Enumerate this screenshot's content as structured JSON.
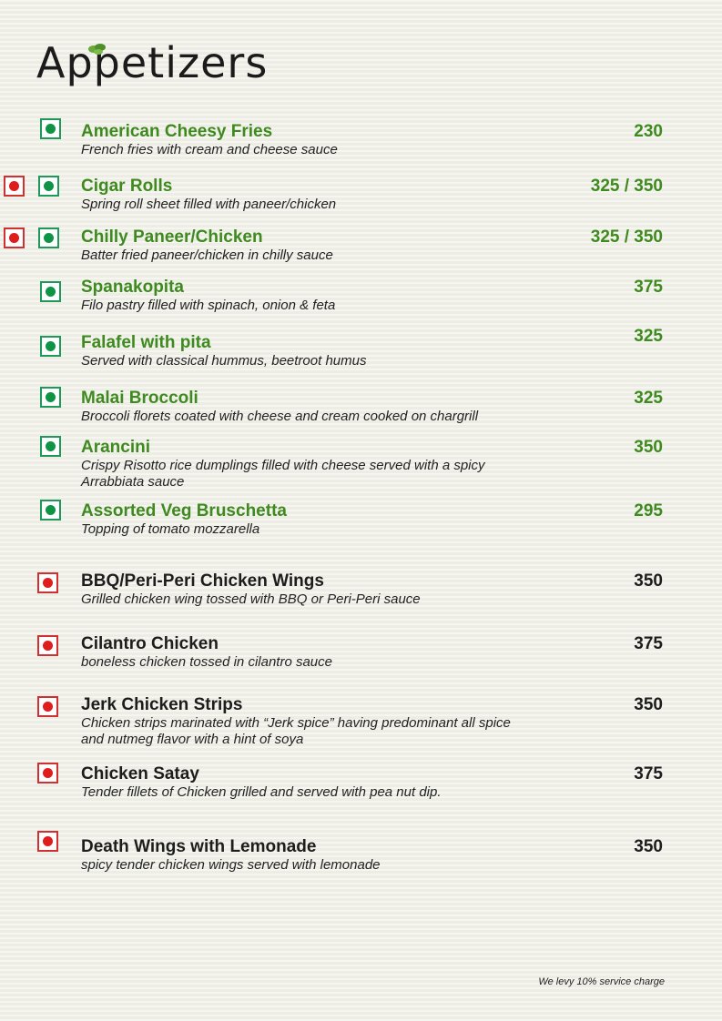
{
  "page_title": "Appetizers",
  "colors": {
    "veg_name": "#3f8a1f",
    "veg_mark": "#0f9446",
    "nonveg_mark": "#e01d1d"
  },
  "items": [
    {
      "name": "American Cheesy Fries",
      "desc": "French fries with cream and cheese sauce",
      "price": "230",
      "type": "veg",
      "marks": [
        "veg"
      ]
    },
    {
      "name": "Cigar Rolls",
      "desc": "Spring roll sheet filled with paneer/chicken",
      "price": "325 / 350",
      "type": "veg",
      "marks": [
        "nonveg",
        "veg"
      ]
    },
    {
      "name": "Chilly Paneer/Chicken",
      "desc": "Batter fried paneer/chicken in chilly sauce",
      "price": "325 / 350",
      "type": "veg",
      "marks": [
        "nonveg",
        "veg"
      ]
    },
    {
      "name": "Spanakopita",
      "desc": "Filo pastry filled with spinach, onion & feta",
      "price": "375",
      "type": "veg",
      "marks": [
        "veg"
      ]
    },
    {
      "name": "Falafel with pita",
      "desc": "Served with classical hummus, beetroot humus",
      "price": "325",
      "type": "veg",
      "marks": [
        "veg"
      ]
    },
    {
      "name": "Malai Broccoli",
      "desc": "Broccoli florets coated with cheese and cream cooked on chargrill",
      "price": "325",
      "type": "veg",
      "marks": [
        "veg"
      ]
    },
    {
      "name": "Arancini",
      "desc": "Crispy Risotto rice dumplings filled with cheese served with a spicy Arrabbiata sauce",
      "price": "350",
      "type": "veg",
      "marks": [
        "veg"
      ]
    },
    {
      "name": "Assorted Veg Bruschetta",
      "desc": "Topping of tomato mozzarella",
      "price": "295",
      "type": "veg",
      "marks": [
        "veg"
      ]
    },
    {
      "name": "BBQ/Peri-Peri Chicken Wings",
      "desc": "Grilled chicken wing tossed with BBQ or Peri-Peri sauce",
      "price": "350",
      "type": "nonveg",
      "marks": [
        "nonveg"
      ]
    },
    {
      "name": "Cilantro Chicken",
      "desc": "boneless chicken tossed in cilantro sauce",
      "price": "375",
      "type": "nonveg",
      "marks": [
        "nonveg"
      ]
    },
    {
      "name": "Jerk Chicken Strips",
      "desc": "Chicken strips marinated with “Jerk spice” having predominant all spice and nutmeg flavor with a hint of soya",
      "price": "350",
      "type": "nonveg",
      "marks": [
        "nonveg"
      ]
    },
    {
      "name": "Chicken Satay",
      "desc": "Tender fillets of Chicken grilled and served with pea nut dip.",
      "price": "375",
      "type": "nonveg",
      "marks": [
        "nonveg"
      ]
    },
    {
      "name": "Death Wings with Lemonade",
      "desc": "spicy tender chicken wings served with lemonade",
      "price": "350",
      "type": "nonveg",
      "marks": [
        "nonveg"
      ]
    }
  ],
  "footer": "We levy 10% service charge"
}
